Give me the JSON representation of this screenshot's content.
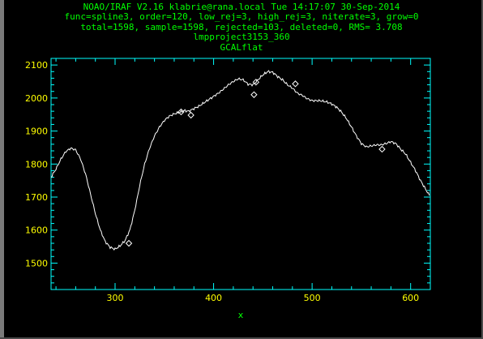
{
  "header": {
    "line1": "NOAO/IRAF V2.16 klabrie@rana.local Tue 14:17:07 30-Sep-2014",
    "line2": "func=spline3, order=120, low_rej=3, high_rej=3, niterate=3, grow=0",
    "line3": "total=1598, sample=1598, rejected=103, deleted=0, RMS=   3.708",
    "line4": "lmpproject3153_360",
    "line5": "GCALflat"
  },
  "colors": {
    "background": "#000000",
    "header_text": "#00ff00",
    "axis_frame": "#00ffff",
    "tick_labels": "#ffff00",
    "data": "#ffffff"
  },
  "chart_data": {
    "type": "line",
    "title": "GCALflat",
    "xlabel": "x",
    "ylabel": "",
    "xlim": [
      235,
      620
    ],
    "ylim": [
      1420,
      2120
    ],
    "x_ticks": [
      300,
      400,
      500,
      600
    ],
    "y_ticks": [
      1500,
      1600,
      1700,
      1800,
      1900,
      2000,
      2100
    ],
    "grid": false,
    "legend": "none",
    "series": [
      {
        "x": [
          235,
          240,
          245,
          250,
          255,
          260,
          265,
          270,
          275,
          280,
          285,
          290,
          295,
          300,
          305,
          310,
          315,
          320,
          325,
          330,
          335,
          340,
          345,
          350,
          355,
          360,
          365,
          370,
          375,
          380,
          385,
          390,
          395,
          400,
          405,
          410,
          415,
          420,
          425,
          430,
          435,
          440,
          445,
          450,
          455,
          460,
          465,
          470,
          475,
          480,
          485,
          490,
          495,
          500,
          505,
          510,
          515,
          520,
          525,
          530,
          535,
          540,
          545,
          550,
          555,
          560,
          565,
          570,
          575,
          580,
          585,
          590,
          595,
          600,
          605,
          610,
          615,
          619
        ],
        "values": [
          1760,
          1785,
          1815,
          1838,
          1848,
          1843,
          1815,
          1770,
          1710,
          1650,
          1600,
          1565,
          1548,
          1542,
          1552,
          1568,
          1600,
          1660,
          1735,
          1800,
          1848,
          1885,
          1912,
          1932,
          1945,
          1952,
          1956,
          1962,
          1960,
          1968,
          1975,
          1985,
          1995,
          2005,
          2015,
          2027,
          2040,
          2050,
          2058,
          2055,
          2042,
          2040,
          2055,
          2070,
          2080,
          2078,
          2065,
          2055,
          2040,
          2030,
          2015,
          2008,
          1998,
          1992,
          1992,
          1991,
          1988,
          1982,
          1972,
          1957,
          1937,
          1912,
          1885,
          1862,
          1852,
          1855,
          1858,
          1858,
          1862,
          1868,
          1862,
          1845,
          1830,
          1805,
          1780,
          1750,
          1725,
          1705
        ]
      }
    ],
    "rejected_points": {
      "x": [
        314,
        367,
        377,
        441,
        443,
        483,
        571
      ],
      "values": [
        1560,
        1958,
        1948,
        2010,
        2048,
        2043,
        1845
      ]
    }
  }
}
